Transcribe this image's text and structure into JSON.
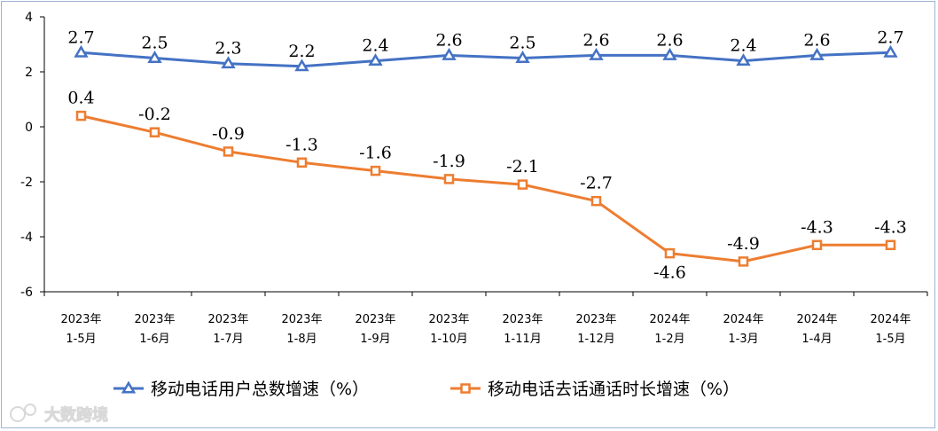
{
  "chart_data": {
    "type": "line",
    "categories": [
      [
        "2023年",
        "1-5月"
      ],
      [
        "2023年",
        "1-6月"
      ],
      [
        "2023年",
        "1-7月"
      ],
      [
        "2023年",
        "1-8月"
      ],
      [
        "2023年",
        "1-9月"
      ],
      [
        "2023年",
        "1-10月"
      ],
      [
        "2023年",
        "1-11月"
      ],
      [
        "2023年",
        "1-12月"
      ],
      [
        "2024年",
        "1-2月"
      ],
      [
        "2024年",
        "1-3月"
      ],
      [
        "2024年",
        "1-4月"
      ],
      [
        "2024年",
        "1-5月"
      ]
    ],
    "series": [
      {
        "name": "移动电话用户总数增速（%）",
        "color": "#4472c4",
        "marker": "triangle",
        "values": [
          2.7,
          2.5,
          2.3,
          2.2,
          2.4,
          2.6,
          2.5,
          2.6,
          2.6,
          2.4,
          2.6,
          2.7
        ],
        "labels": [
          "2.7",
          "2.5",
          "2.3",
          "2.2",
          "2.4",
          "2.6",
          "2.5",
          "2.6",
          "2.6",
          "2.4",
          "2.6",
          "2.7"
        ]
      },
      {
        "name": "移动电话去话通话时长增速（%）",
        "color": "#ed7d31",
        "marker": "square",
        "values": [
          0.4,
          -0.2,
          -0.9,
          -1.3,
          -1.6,
          -1.9,
          -2.1,
          -2.7,
          -4.6,
          -4.9,
          -4.3,
          -4.3
        ],
        "labels": [
          "0.4",
          "-0.2",
          "-0.9",
          "-1.3",
          "-1.6",
          "-1.9",
          "-2.1",
          "-2.7",
          "-4.6",
          "-4.9",
          "-4.3",
          "-4.3"
        ]
      }
    ],
    "yticks": [
      "4",
      "2",
      "0",
      "-2",
      "-4",
      "-6"
    ],
    "ylim": [
      -6,
      4
    ],
    "title": "",
    "xlabel": "",
    "ylabel": "",
    "legend": "bottom"
  },
  "watermark": "大数跨境"
}
